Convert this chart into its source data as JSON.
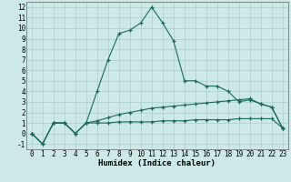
{
  "xlabel": "Humidex (Indice chaleur)",
  "x_values": [
    0,
    1,
    2,
    3,
    4,
    5,
    6,
    7,
    8,
    9,
    10,
    11,
    12,
    13,
    14,
    15,
    16,
    17,
    18,
    19,
    20,
    21,
    22,
    23
  ],
  "series1": [
    0.0,
    -1.0,
    1.0,
    1.0,
    0.0,
    1.0,
    4.0,
    7.0,
    9.5,
    9.8,
    10.5,
    12.0,
    10.5,
    8.8,
    5.0,
    5.0,
    4.5,
    4.5,
    4.0,
    3.0,
    3.2,
    2.8,
    2.5,
    0.5
  ],
  "series2": [
    0.0,
    -1.0,
    1.0,
    1.0,
    0.0,
    1.0,
    1.2,
    1.5,
    1.8,
    2.0,
    2.2,
    2.4,
    2.5,
    2.6,
    2.7,
    2.8,
    2.9,
    3.0,
    3.1,
    3.2,
    3.3,
    2.8,
    2.5,
    0.5
  ],
  "series3": [
    0.0,
    -1.0,
    1.0,
    1.0,
    0.0,
    1.0,
    1.0,
    1.0,
    1.1,
    1.1,
    1.1,
    1.1,
    1.2,
    1.2,
    1.2,
    1.3,
    1.3,
    1.3,
    1.3,
    1.4,
    1.4,
    1.4,
    1.4,
    0.5
  ],
  "line_color": "#1a6b5a",
  "bg_color": "#cce8e8",
  "grid_color": "#aacece",
  "ylim": [
    -1.5,
    12.5
  ],
  "xlim": [
    -0.5,
    23.5
  ],
  "yticks": [
    -1,
    0,
    1,
    2,
    3,
    4,
    5,
    6,
    7,
    8,
    9,
    10,
    11,
    12
  ],
  "xticks": [
    0,
    1,
    2,
    3,
    4,
    5,
    6,
    7,
    8,
    9,
    10,
    11,
    12,
    13,
    14,
    15,
    16,
    17,
    18,
    19,
    20,
    21,
    22,
    23
  ],
  "tick_fontsize": 5.5,
  "xlabel_fontsize": 6.5,
  "marker_size": 3.5,
  "linewidth": 0.8
}
